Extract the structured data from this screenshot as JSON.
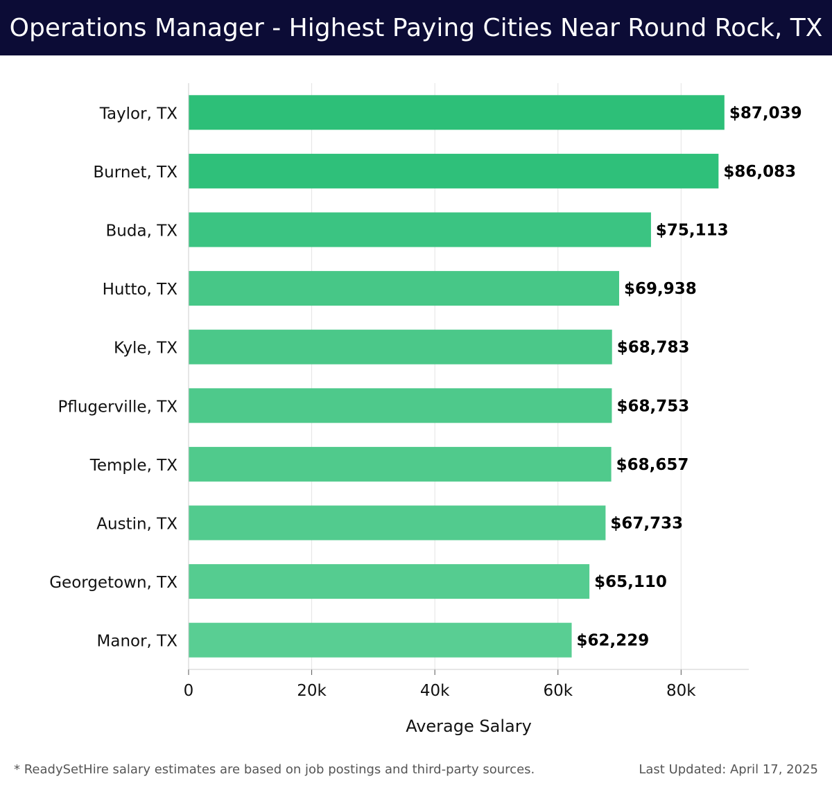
{
  "header": {
    "title": "Operations Manager - Highest Paying Cities Near Round Rock, TX"
  },
  "footer": {
    "note": "* ReadySetHire salary estimates are based on job postings and third-party sources.",
    "updated": "Last Updated: April 17, 2025"
  },
  "chart_data": {
    "type": "bar",
    "orientation": "horizontal",
    "title": "Operations Manager - Highest Paying Cities Near Round Rock, TX",
    "xlabel": "Average Salary",
    "ylabel": "",
    "xlim": [
      0,
      91000
    ],
    "xticks": [
      0,
      20000,
      40000,
      60000,
      80000
    ],
    "xtick_labels": [
      "0",
      "20k",
      "40k",
      "60k",
      "80k"
    ],
    "grid": "vertical",
    "categories": [
      "Taylor, TX",
      "Burnet, TX",
      "Buda, TX",
      "Hutto, TX",
      "Kyle, TX",
      "Pflugerville, TX",
      "Temple, TX",
      "Austin, TX",
      "Georgetown, TX",
      "Manor, TX"
    ],
    "values": [
      87039,
      86083,
      75113,
      69938,
      68783,
      68753,
      68657,
      67733,
      65110,
      62229
    ],
    "value_labels": [
      "$87,039",
      "$86,083",
      "$75,113",
      "$69,938",
      "$68,783",
      "$68,753",
      "$68,657",
      "$67,733",
      "$65,110",
      "$62,229"
    ],
    "colors": [
      "#2dbf78",
      "#2fc07a",
      "#3bc482",
      "#47c787",
      "#4bc889",
      "#4ec98b",
      "#50ca8c",
      "#52cb8e",
      "#55cc90",
      "#59ce93"
    ]
  }
}
